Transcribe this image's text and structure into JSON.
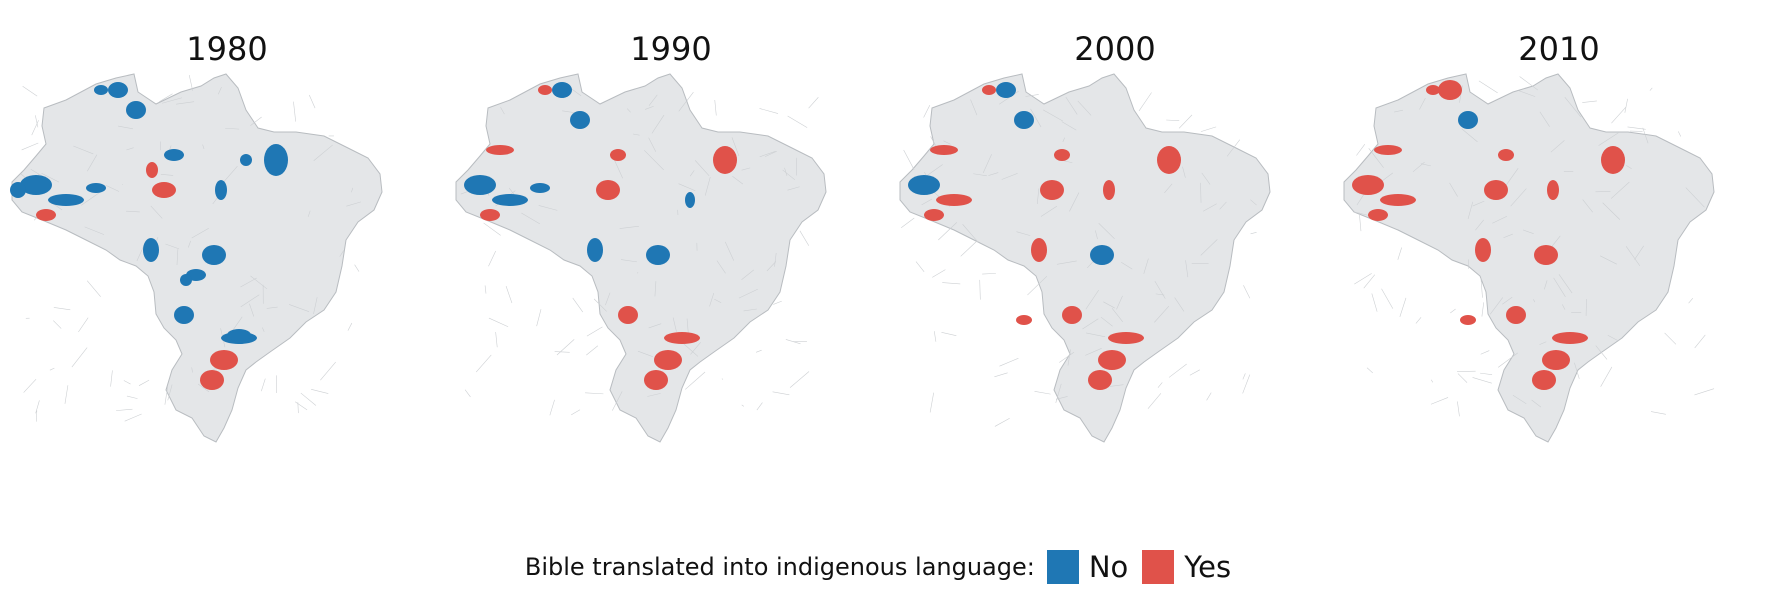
{
  "panels": [
    {
      "year": "1980"
    },
    {
      "year": "1990"
    },
    {
      "year": "2000"
    },
    {
      "year": "2010"
    }
  ],
  "legend": {
    "title": "Bible translated into indigenous language:",
    "items": [
      {
        "label": "No",
        "color": "#1f77b4"
      },
      {
        "label": "Yes",
        "color": "#e0524a"
      }
    ]
  },
  "colors": {
    "land": "#e4e6e8",
    "border": "#b8bcc0",
    "no": "#1f77b4",
    "yes": "#e0524a"
  }
}
